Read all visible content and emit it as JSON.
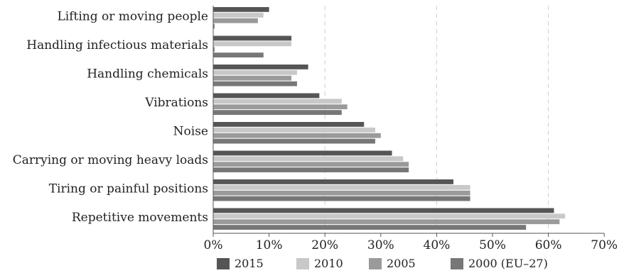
{
  "chart_data": {
    "type": "bar",
    "orientation": "horizontal",
    "categories": [
      "Lifting or moving people",
      "Handling infectious materials",
      "Handling chemicals",
      "Vibrations",
      "Noise",
      "Carrying or moving heavy loads",
      "Tiring or painful positions",
      "Repetitive movements"
    ],
    "series": [
      {
        "name": "2015",
        "color": "#555555",
        "values": [
          10,
          14,
          17,
          19,
          27,
          32,
          43,
          61
        ]
      },
      {
        "name": "2010",
        "color": "#c8c8c8",
        "values": [
          9,
          14,
          15,
          23,
          29,
          34,
          46,
          63
        ]
      },
      {
        "name": "2005",
        "color": "#9a9a9a",
        "values": [
          8,
          null,
          14,
          24,
          30,
          35,
          46,
          62
        ]
      },
      {
        "name": "2000 (EU–27)",
        "color": "#777777",
        "values": [
          null,
          9,
          15,
          23,
          29,
          35,
          46,
          56
        ]
      }
    ],
    "xlim": [
      0,
      70
    ],
    "xticks": [
      "0%",
      "10%",
      "20%",
      "30%",
      "40%",
      "50%",
      "60%",
      "70%"
    ],
    "grid_lines_at": [
      20,
      40,
      60
    ],
    "legend_position": "bottom",
    "title": "",
    "xlabel": "",
    "ylabel": ""
  }
}
